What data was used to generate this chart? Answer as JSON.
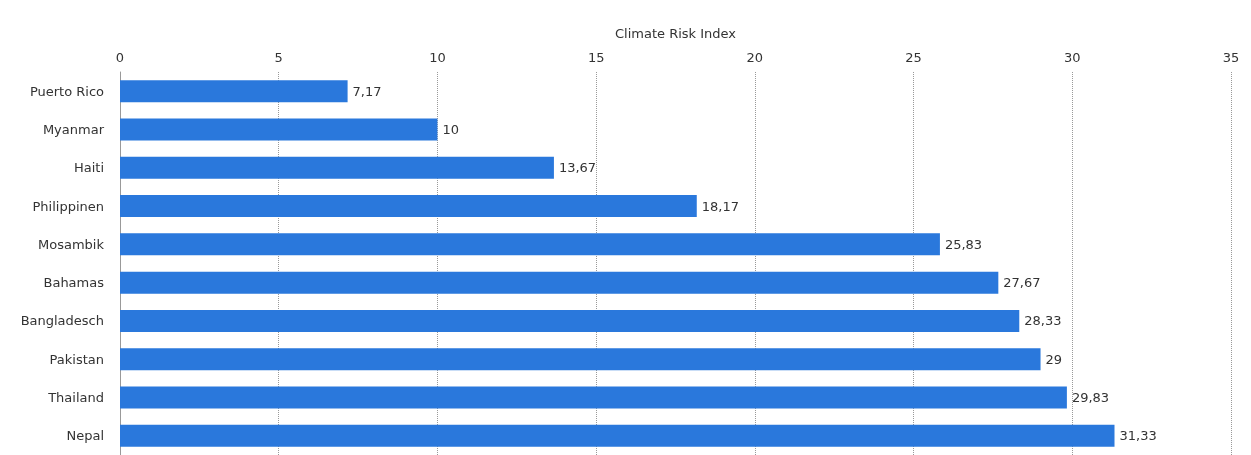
{
  "chart_data": {
    "type": "bar",
    "orientation": "horizontal",
    "xlabel": "Climate Risk Index",
    "categories": [
      "Puerto Rico",
      "Myanmar",
      "Haiti",
      "Philippinen",
      "Mosambik",
      "Bahamas",
      "Bangladesch",
      "Pakistan",
      "Thailand",
      "Nepal"
    ],
    "values": [
      7.17,
      10,
      13.67,
      18.17,
      25.83,
      27.67,
      28.33,
      29,
      29.83,
      31.33
    ],
    "value_labels": [
      "7,17",
      "10",
      "13,67",
      "18,17",
      "25,83",
      "27,67",
      "28,33",
      "29",
      "29,83",
      "31,33"
    ],
    "color": "#2a78dc",
    "xlim": [
      0,
      35
    ],
    "xticks": [
      0,
      5,
      10,
      15,
      20,
      25,
      30,
      35
    ],
    "grid": "x"
  }
}
